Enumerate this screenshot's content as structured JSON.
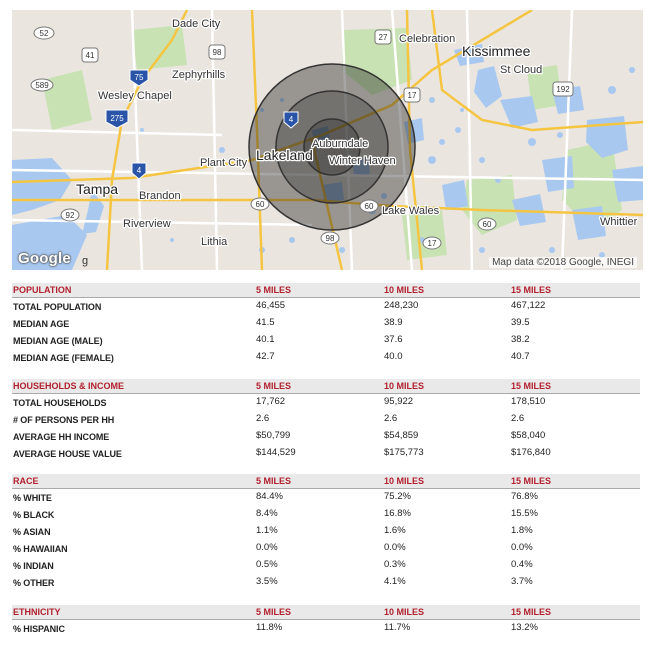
{
  "map": {
    "cities": {
      "dade_city": "Dade City",
      "zephyrhills": "Zephyrhills",
      "wesley_chapel": "Wesley Chapel",
      "celebration": "Celebration",
      "kissimmee": "Kissimmee",
      "st_cloud": "St Cloud",
      "plant_city": "Plant City",
      "lakeland": "Lakeland",
      "auburndale": "Auburndale",
      "winter_haven": "Winter Haven",
      "tampa": "Tampa",
      "brandon": "Brandon",
      "riverview": "Riverview",
      "lithia": "Lithia",
      "lake_wales": "Lake Wales",
      "whittier": "Whittier"
    },
    "shields": {
      "s52": "52",
      "s41": "41",
      "s98a": "98",
      "s27": "27",
      "s589": "589",
      "i75": "75",
      "s17a": "17",
      "s192": "192",
      "i275": "275",
      "i4a": "4",
      "i4b": "4",
      "s60a": "60",
      "s60b": "60",
      "s92": "92",
      "s98b": "98",
      "s17b": "17",
      "s60c": "60"
    },
    "logo": "Google",
    "logo_tail": "g",
    "attribution": "Map data ©2018 Google, INEGI",
    "colors": {
      "water": "#a9c8f0",
      "land": "#eae6df",
      "park": "#c8e2b4",
      "road": "#f5c542"
    }
  },
  "radii_miles": [
    "5 MILES",
    "10 MILES",
    "15 MILES"
  ],
  "sections": {
    "population": {
      "title": "POPULATION",
      "cols": [
        "5 MILES",
        "10 MILES",
        "15 MILES"
      ],
      "rows": [
        {
          "label": "TOTAL POPULATION",
          "values": [
            "46,455",
            "248,230",
            "467,122"
          ]
        },
        {
          "label": "MEDIAN AGE",
          "values": [
            "41.5",
            "38.9",
            "39.5"
          ]
        },
        {
          "label": "MEDIAN AGE (MALE)",
          "values": [
            "40.1",
            "37.6",
            "38.2"
          ]
        },
        {
          "label": "MEDIAN AGE (FEMALE)",
          "values": [
            "42.7",
            "40.0",
            "40.7"
          ]
        }
      ]
    },
    "households": {
      "title": "HOUSEHOLDS & INCOME",
      "cols": [
        "5 MILES",
        "10 MILES",
        "15 MILES"
      ],
      "rows": [
        {
          "label": "TOTAL HOUSEHOLDS",
          "values": [
            "17,762",
            "95,922",
            "178,510"
          ]
        },
        {
          "label": "# OF PERSONS PER HH",
          "values": [
            "2.6",
            "2.6",
            "2.6"
          ]
        },
        {
          "label": "AVERAGE HH INCOME",
          "values": [
            "$50,799",
            "$54,859",
            "$58,040"
          ]
        },
        {
          "label": "AVERAGE HOUSE VALUE",
          "values": [
            "$144,529",
            "$175,773",
            "$176,840"
          ]
        }
      ]
    },
    "race": {
      "title": "RACE",
      "cols": [
        "5 MILES",
        "10 MILES",
        "15 MILES"
      ],
      "rows": [
        {
          "label": "% WHITE",
          "values": [
            "84.4%",
            "75.2%",
            "76.8%"
          ]
        },
        {
          "label": "% BLACK",
          "values": [
            "8.4%",
            "16.8%",
            "15.5%"
          ]
        },
        {
          "label": "% ASIAN",
          "values": [
            "1.1%",
            "1.6%",
            "1.8%"
          ]
        },
        {
          "label": "% HAWAIIAN",
          "values": [
            "0.0%",
            "0.0%",
            "0.0%"
          ]
        },
        {
          "label": "% INDIAN",
          "values": [
            "0.5%",
            "0.3%",
            "0.4%"
          ]
        },
        {
          "label": "% OTHER",
          "values": [
            "3.5%",
            "4.1%",
            "3.7%"
          ]
        }
      ]
    },
    "ethnicity": {
      "title": "ETHNICITY",
      "cols": [
        "5 MILES",
        "10 MILES",
        "15 MILES"
      ],
      "rows": [
        {
          "label": "% HISPANIC",
          "values": [
            "11.8%",
            "11.7%",
            "13.2%"
          ]
        }
      ]
    }
  }
}
